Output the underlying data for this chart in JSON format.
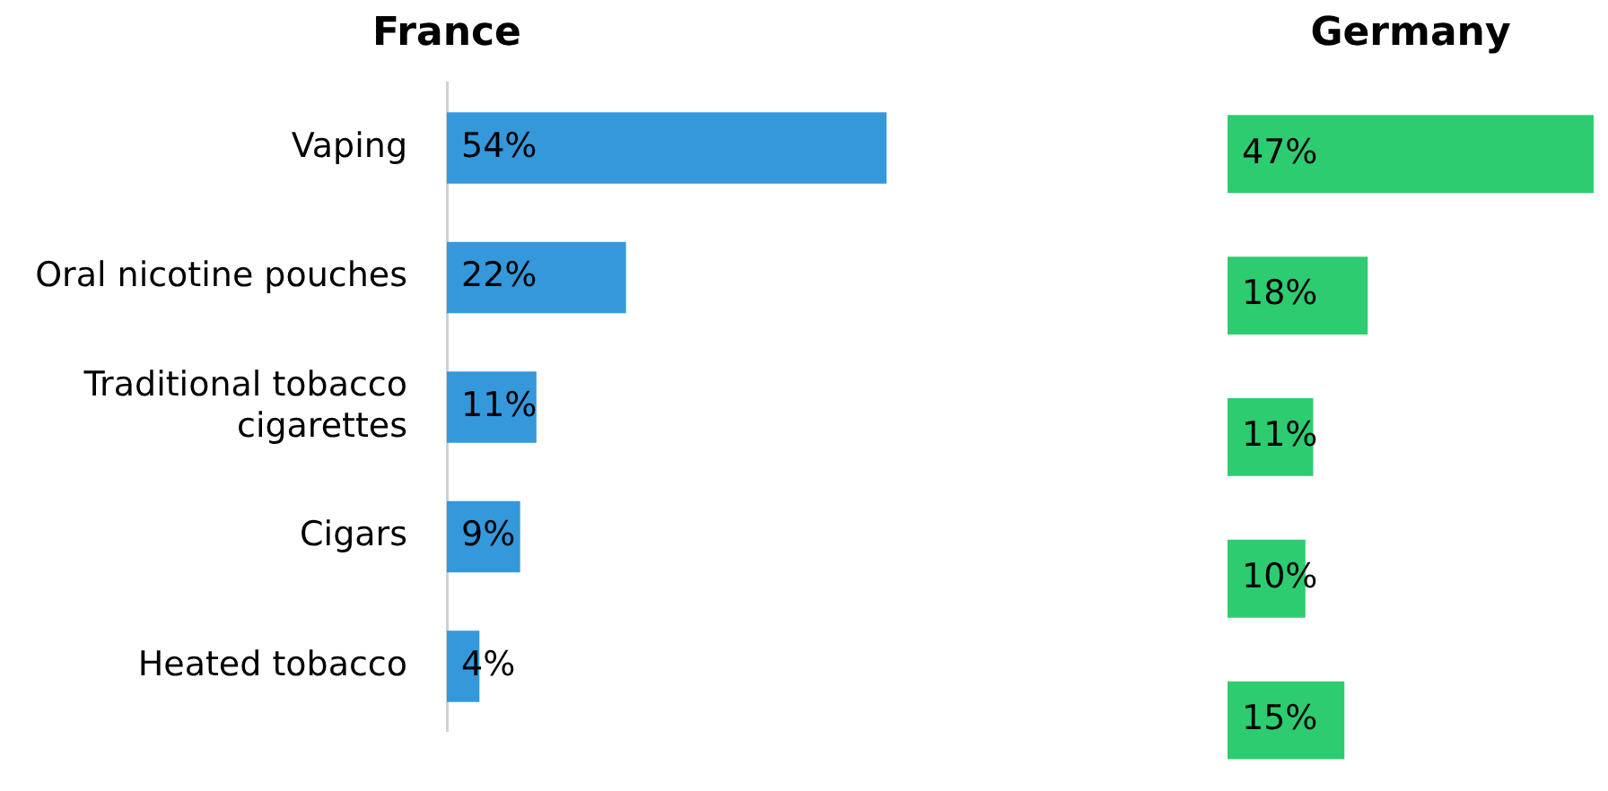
{
  "chart_data": [
    {
      "type": "bar",
      "orientation": "horizontal",
      "title": "France",
      "categories": [
        "Vaping",
        "Oral nicotine pouches",
        "Traditional tobacco cigarettes",
        "Cigars",
        "Heated tobacco"
      ],
      "values": [
        54,
        22,
        11,
        9,
        4
      ],
      "value_labels": [
        "54%",
        "22%",
        "11%",
        "9%",
        "4%"
      ],
      "color": "#3498db",
      "tick_labels": "y"
    },
    {
      "type": "bar",
      "orientation": "horizontal",
      "title": "Germany",
      "categories": [
        null,
        null,
        null,
        null,
        null
      ],
      "values": [
        47,
        18,
        11,
        10,
        15
      ],
      "value_labels": [
        "47%",
        "18%",
        "11%",
        "10%",
        "15%"
      ],
      "color": "#2ecc71",
      "tick_labels": false
    }
  ]
}
